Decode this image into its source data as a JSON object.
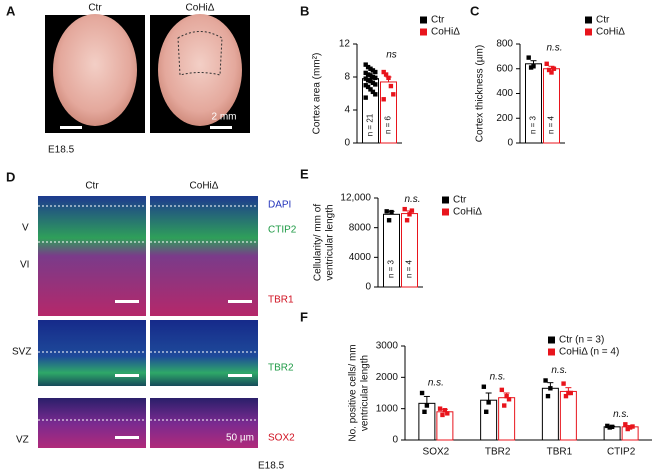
{
  "panel_labels": [
    "A",
    "B",
    "C",
    "D",
    "E",
    "F"
  ],
  "panel_a": {
    "columns": [
      "Ctr",
      "CoHiΔ"
    ],
    "scale_bar": "2 mm",
    "stage": "E18.5"
  },
  "panel_d": {
    "columns": [
      "Ctr",
      "CoHiΔ"
    ],
    "layers": [
      "V",
      "VI",
      "SVZ",
      "VZ"
    ],
    "stains": [
      "DAPI",
      "CTIP2",
      "TBR1",
      "TBR2",
      "SOX2"
    ],
    "scale_bar": "50 µm",
    "stage": "E18.5"
  },
  "chart_data": [
    {
      "type": "bar",
      "ylabel": [
        "Cortex area (mm²)"
      ],
      "categories": [
        null
      ],
      "ylim": [
        0,
        12
      ],
      "yticks": [
        0,
        4,
        8,
        12
      ],
      "annotations": [
        "ns"
      ],
      "series": [
        {
          "name": "Ctr",
          "color": "#000000",
          "values": [
            7.8
          ],
          "errors": [
            0.3
          ],
          "n_label": "n = 21",
          "points": [
            [
              9.5,
              9.2,
              9.0,
              8.8,
              8.6,
              8.5,
              8.3,
              8.2,
              8.0,
              7.9,
              7.8,
              7.6,
              7.5,
              7.3,
              7.1,
              7.0,
              6.8,
              6.5,
              6.2,
              5.9,
              5.5
            ]
          ]
        },
        {
          "name": "CoHiΔ",
          "color": "#e8141c",
          "values": [
            7.4
          ],
          "errors": [
            0.6
          ],
          "n_label": "n = 6",
          "points": [
            [
              8.6,
              8.3,
              7.9,
              6.9,
              5.9,
              5.3
            ]
          ]
        }
      ]
    },
    {
      "type": "bar",
      "ylabel": [
        "Cortex thickness (µm)"
      ],
      "categories": [
        null
      ],
      "ylim": [
        0,
        800
      ],
      "yticks": [
        0,
        200,
        400,
        600,
        800
      ],
      "annotations": [
        "n.s."
      ],
      "series": [
        {
          "name": "Ctr",
          "color": "#000000",
          "values": [
            640
          ],
          "errors": [
            25
          ],
          "n_label": "n = 3",
          "points": [
            [
              690,
              610,
              620
            ]
          ]
        },
        {
          "name": "CoHiΔ",
          "color": "#e8141c",
          "values": [
            600
          ],
          "errors": [
            20
          ],
          "n_label": "n = 4",
          "points": [
            [
              640,
              590,
              570,
              600
            ]
          ]
        }
      ]
    },
    {
      "type": "bar",
      "ylabel": [
        "Cellularity/ mm of",
        "ventricular length"
      ],
      "categories": [
        null
      ],
      "ylim": [
        0,
        12000
      ],
      "yticks": [
        0,
        4000,
        8000,
        {
          "value": 12000,
          "label": "12,000"
        }
      ],
      "annotations": [
        "n.s."
      ],
      "series": [
        {
          "name": "Ctr",
          "color": "#000000",
          "values": [
            9800
          ],
          "errors": [
            400
          ],
          "n_label": "n = 3",
          "points": [
            [
              10200,
              9000,
              10100
            ]
          ]
        },
        {
          "name": "CoHiΔ",
          "color": "#e8141c",
          "values": [
            9900
          ],
          "errors": [
            350
          ],
          "n_label": "n = 4",
          "points": [
            [
              10500,
              9000,
              9800,
              10300
            ]
          ]
        }
      ]
    },
    {
      "type": "bar",
      "ylabel": [
        "No. positive cells/ mm",
        "ventricular length"
      ],
      "categories": [
        "SOX2",
        "TBR2",
        "TBR1",
        "CTIP2"
      ],
      "ylim": [
        0,
        3000
      ],
      "yticks": [
        0,
        1000,
        2000,
        3000
      ],
      "annotations": [
        "n.s.",
        "n.s.",
        "n.s.",
        "n.s."
      ],
      "series": [
        {
          "name": "Ctr (n = 3)",
          "color": "#000000",
          "values": [
            1170,
            1270,
            1650,
            420
          ],
          "errors": [
            220,
            230,
            180,
            20
          ],
          "points": [
            [
              1500,
              900,
              1100
            ],
            [
              1700,
              900,
              1200
            ],
            [
              1900,
              1400,
              1650
            ],
            [
              450,
              400,
              420
            ]
          ]
        },
        {
          "name": "CoHiΔ (n = 4)",
          "color": "#e8141c",
          "values": [
            900,
            1350,
            1550,
            420
          ],
          "errors": [
            80,
            150,
            120,
            40
          ],
          "points": [
            [
              1000,
              800,
              950,
              850
            ],
            [
              1600,
              1100,
              1400,
              1300
            ],
            [
              1800,
              1400,
              1500,
              1500
            ],
            [
              500,
              350,
              400,
              430
            ]
          ]
        }
      ]
    }
  ]
}
